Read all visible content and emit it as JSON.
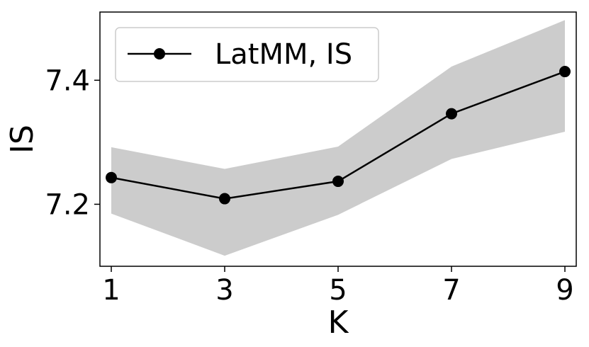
{
  "chart_data": {
    "type": "line",
    "title": "",
    "xlabel": "K",
    "ylabel": "IS",
    "x": [
      1,
      3,
      5,
      7,
      9
    ],
    "xticks": [
      "1",
      "3",
      "5",
      "7",
      "9"
    ],
    "yticks": [
      7.2,
      7.4
    ],
    "ytick_labels": [
      "7.2",
      "7.4"
    ],
    "xlim": [
      0.8,
      9.2
    ],
    "ylim": [
      7.1,
      7.51
    ],
    "grid": false,
    "legend_position": "top-left",
    "series": [
      {
        "name": "LatMM, IS",
        "values": [
          7.243,
          7.209,
          7.237,
          7.346,
          7.414
        ],
        "lower": [
          7.185,
          7.117,
          7.183,
          7.273,
          7.317
        ],
        "upper": [
          7.292,
          7.257,
          7.293,
          7.422,
          7.497
        ],
        "color": "#000000",
        "band_color": "#cccccc"
      }
    ]
  }
}
